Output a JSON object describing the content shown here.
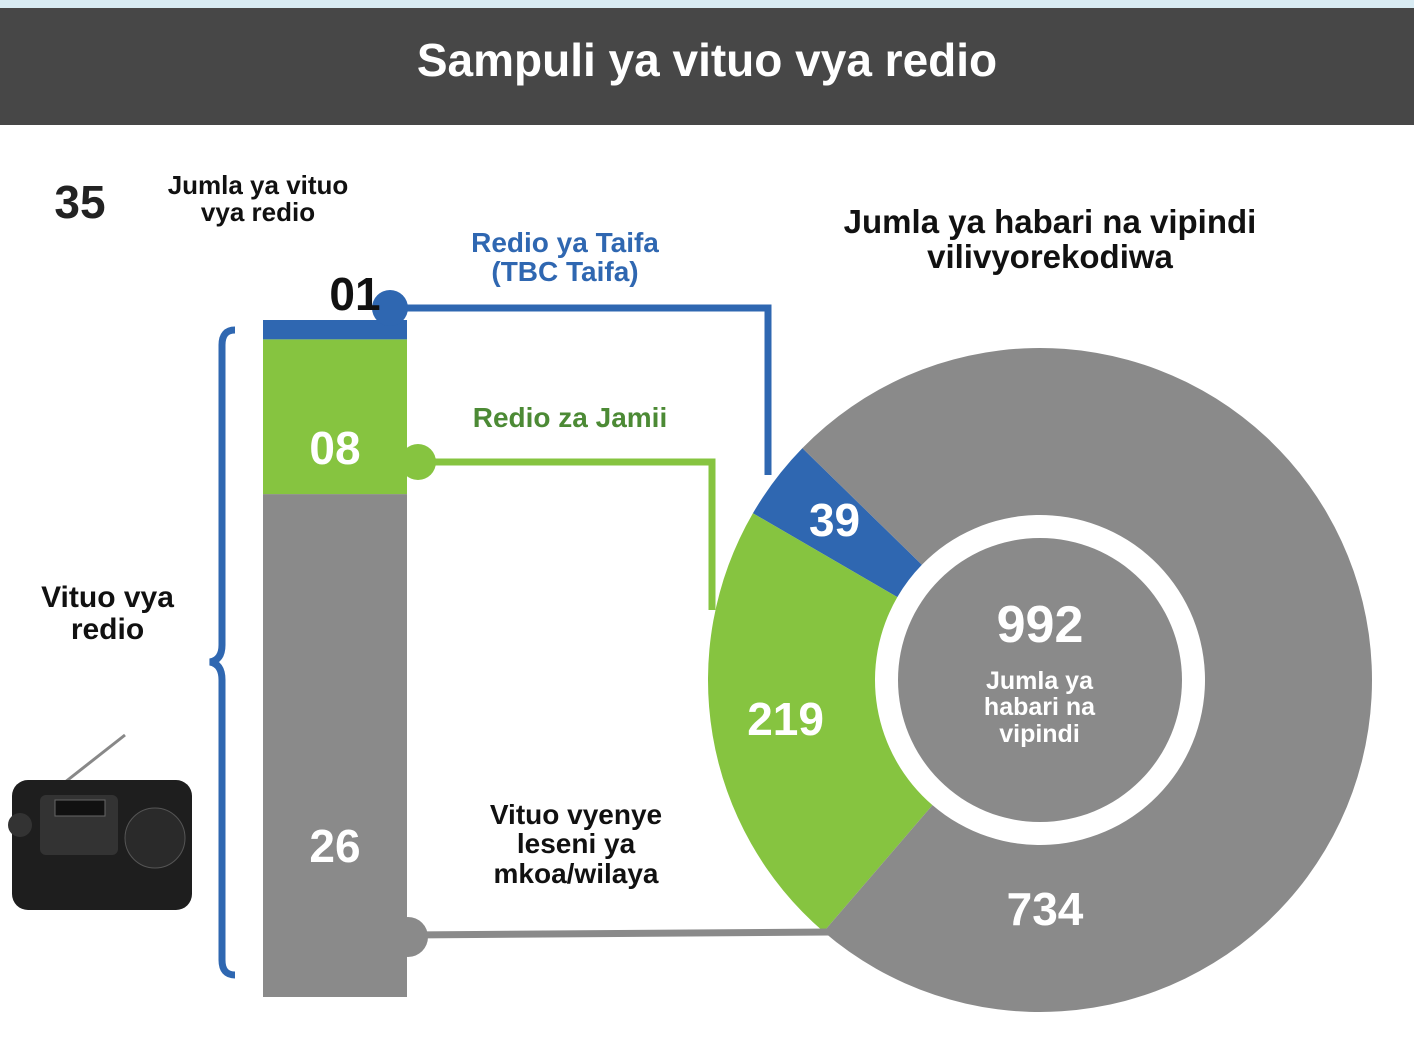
{
  "header": {
    "title": "Sampuli ya vituo vya redio"
  },
  "chart_data": [
    {
      "type": "stacked-bar",
      "total": 35,
      "total_label": "Jumla ya vituo vya redio",
      "axis_label": "Vituo vya redio",
      "series": [
        {
          "name": "Redio ya Taifa (TBC Taifa)",
          "color": "#2f67b1",
          "values": [
            1
          ],
          "value_labels": [
            "01"
          ]
        },
        {
          "name": "Redio za Jamii",
          "color": "#86c440",
          "values": [
            8
          ],
          "value_labels": [
            "08"
          ]
        },
        {
          "name": "Vituo vyenye leseni ya mkoa/wilaya",
          "color": "#8a8a8a",
          "values": [
            26
          ]
        }
      ]
    },
    {
      "type": "donut",
      "title": "Jumla ya habari na vipindi vilivyorekodiwa",
      "total": 992,
      "center_label": "Jumla ya habari na vipindi",
      "values": [
        39,
        219,
        734
      ],
      "colors": [
        "#2f67b1",
        "#86c440",
        "#8a8a8a"
      ]
    }
  ]
}
